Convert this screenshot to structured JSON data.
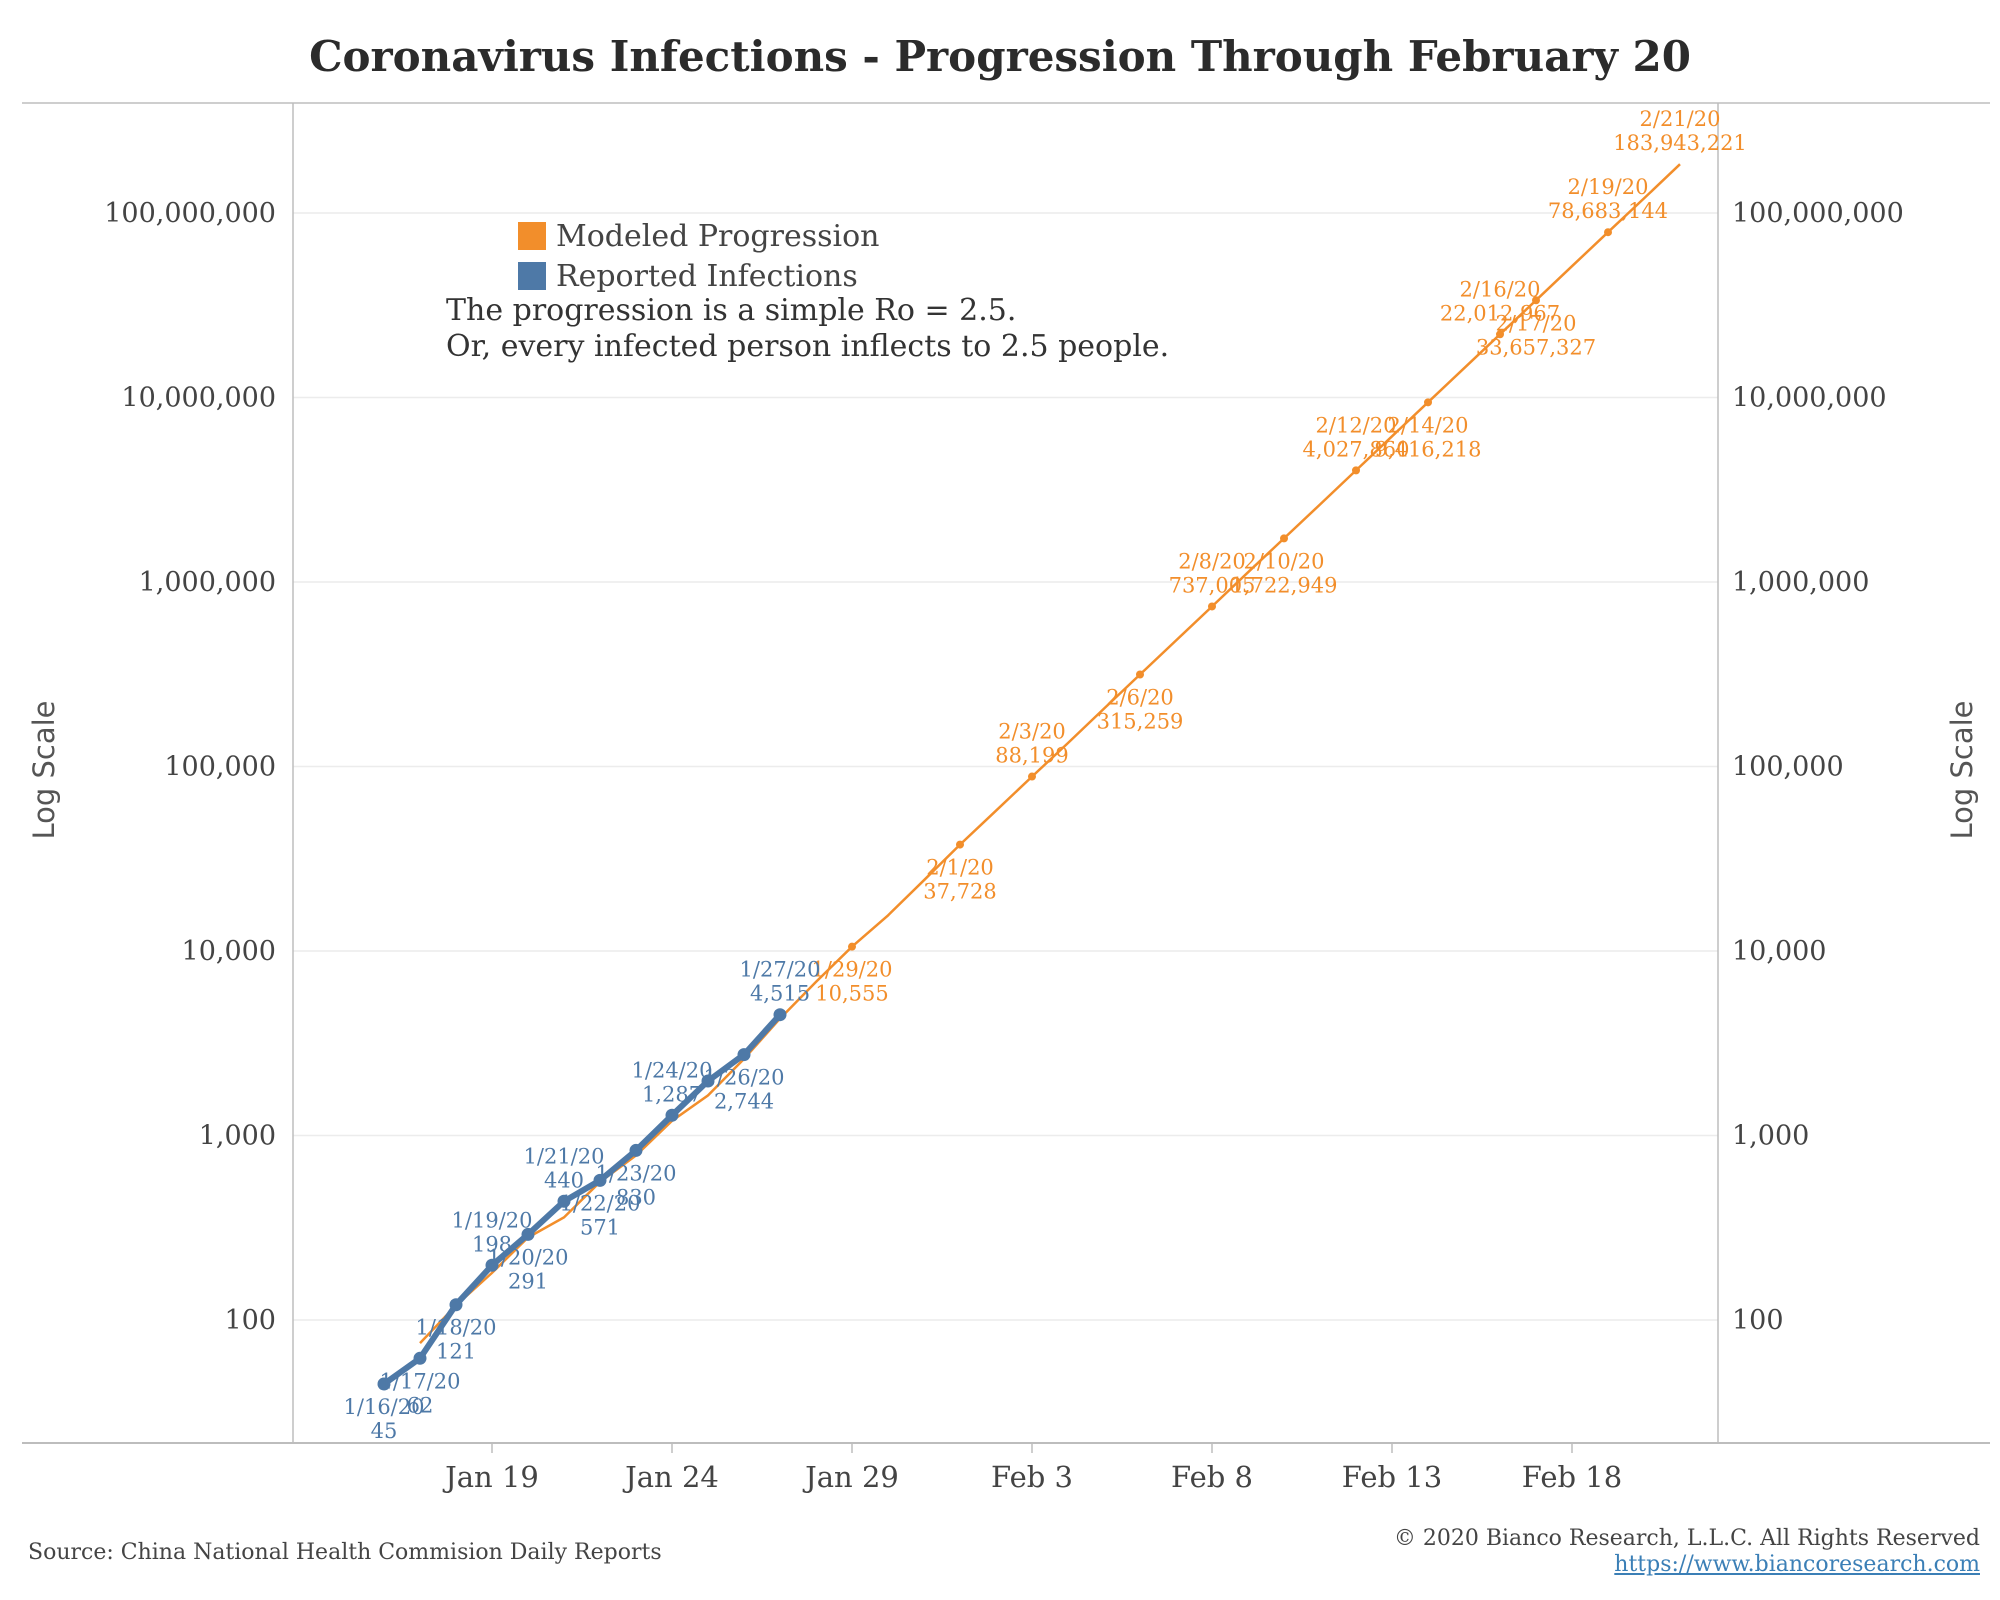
{
  "title": "Coronavirus Infections - Progression Through February 20",
  "source": "Source: China National Health Commision Daily Reports",
  "copyright": "© 2020 Bianco Research, L.L.C. All Rights Reserved",
  "url": "https://www.biancoresearch.com",
  "note_lines": [
    "The progression is a simple Ro = 2.5.",
    "Or, every infected person inflects to 2.5 people."
  ],
  "colors": {
    "modeled": "#f28e2b",
    "reported": "#4e79a7",
    "grid": "#ececec",
    "axis": "#bdbdbd"
  },
  "chart_data": {
    "type": "line",
    "title": "Coronavirus Infections - Progression Through February 20",
    "xlabel": "",
    "ylabel": "Log Scale",
    "yscale": "log",
    "ylim": [
      25,
      350000000
    ],
    "xlim": [
      "2020-01-15",
      "2020-02-23"
    ],
    "grid": true,
    "legend_position": "top-left",
    "y_ticks": [
      {
        "value": 100,
        "label": "100"
      },
      {
        "value": 1000,
        "label": "1,000"
      },
      {
        "value": 10000,
        "label": "10,000"
      },
      {
        "value": 100000,
        "label": "100,000"
      },
      {
        "value": 1000000,
        "label": "1,000,000"
      },
      {
        "value": 10000000,
        "label": "10,000,000"
      },
      {
        "value": 100000000,
        "label": "100,000,000"
      }
    ],
    "x_ticks": [
      {
        "date": "2020-01-19",
        "label": "Jan 19"
      },
      {
        "date": "2020-01-24",
        "label": "Jan 24"
      },
      {
        "date": "2020-01-29",
        "label": "Jan 29"
      },
      {
        "date": "2020-02-03",
        "label": "Feb 3"
      },
      {
        "date": "2020-02-08",
        "label": "Feb 8"
      },
      {
        "date": "2020-02-13",
        "label": "Feb 13"
      },
      {
        "date": "2020-02-18",
        "label": "Feb 18"
      }
    ],
    "series": [
      {
        "name": "Modeled Progression",
        "color": "#f28e2b",
        "line": [
          {
            "date": "2020-01-17",
            "y": 75
          },
          {
            "date": "2020-01-18",
            "y": 120
          },
          {
            "date": "2020-01-19",
            "y": 180
          },
          {
            "date": "2020-01-20",
            "y": 280
          },
          {
            "date": "2020-01-21",
            "y": 360
          },
          {
            "date": "2020-01-22",
            "y": 560
          },
          {
            "date": "2020-01-23",
            "y": 780
          },
          {
            "date": "2020-01-24",
            "y": 1200
          },
          {
            "date": "2020-01-25",
            "y": 1650
          },
          {
            "date": "2020-01-26",
            "y": 2600
          },
          {
            "date": "2020-01-27",
            "y": 4300
          },
          {
            "date": "2020-01-28",
            "y": 6800
          },
          {
            "date": "2020-01-29",
            "y": 10555
          },
          {
            "date": "2020-01-30",
            "y": 15600
          },
          {
            "date": "2020-01-31",
            "y": 24200
          },
          {
            "date": "2020-02-01",
            "y": 37728
          },
          {
            "date": "2020-02-02",
            "y": 57600
          },
          {
            "date": "2020-02-03",
            "y": 88199
          },
          {
            "date": "2020-02-04",
            "y": 134000
          },
          {
            "date": "2020-02-05",
            "y": 206000
          },
          {
            "date": "2020-02-06",
            "y": 315259
          },
          {
            "date": "2020-02-07",
            "y": 482000
          },
          {
            "date": "2020-02-08",
            "y": 737005
          },
          {
            "date": "2020-02-09",
            "y": 1128000
          },
          {
            "date": "2020-02-10",
            "y": 1722949
          },
          {
            "date": "2020-02-11",
            "y": 2630000
          },
          {
            "date": "2020-02-12",
            "y": 4027860
          },
          {
            "date": "2020-02-13",
            "y": 6160000
          },
          {
            "date": "2020-02-14",
            "y": 9416218
          },
          {
            "date": "2020-02-15",
            "y": 14400000
          },
          {
            "date": "2020-02-16",
            "y": 22012967
          },
          {
            "date": "2020-02-17",
            "y": 33657327
          },
          {
            "date": "2020-02-18",
            "y": 51500000
          },
          {
            "date": "2020-02-19",
            "y": 78683144
          },
          {
            "date": "2020-02-20",
            "y": 120000000
          },
          {
            "date": "2020-02-21",
            "y": 183943221
          }
        ],
        "labeled_points": [
          {
            "date": "2020-01-29",
            "y": 10555,
            "label_date": "1/29/20",
            "label_value": "10,555",
            "pos": "below"
          },
          {
            "date": "2020-02-01",
            "y": 37728,
            "label_date": "2/1/20",
            "label_value": "37,728",
            "pos": "below"
          },
          {
            "date": "2020-02-03",
            "y": 88199,
            "label_date": "2/3/20",
            "label_value": "88,199",
            "pos": "above"
          },
          {
            "date": "2020-02-06",
            "y": 315259,
            "label_date": "2/6/20",
            "label_value": "315,259",
            "pos": "below"
          },
          {
            "date": "2020-02-08",
            "y": 737005,
            "label_date": "2/8/20",
            "label_value": "737,005",
            "pos": "above"
          },
          {
            "date": "2020-02-10",
            "y": 1722949,
            "label_date": "2/10/20",
            "label_value": "1,722,949",
            "pos": "below"
          },
          {
            "date": "2020-02-12",
            "y": 4027860,
            "label_date": "2/12/20",
            "label_value": "4,027,860",
            "pos": "above"
          },
          {
            "date": "2020-02-14",
            "y": 9416218,
            "label_date": "2/14/20",
            "label_value": "9,416,218",
            "pos": "below"
          },
          {
            "date": "2020-02-16",
            "y": 22012967,
            "label_date": "2/16/20",
            "label_value": "22,012,967",
            "pos": "above"
          },
          {
            "date": "2020-02-17",
            "y": 33657327,
            "label_date": "2/17/20",
            "label_value": "33,657,327",
            "pos": "below"
          },
          {
            "date": "2020-02-19",
            "y": 78683144,
            "label_date": "2/19/20",
            "label_value": "78,683,144",
            "pos": "above"
          },
          {
            "date": "2020-02-21",
            "y": 183943221,
            "label_date": "2/21/20",
            "label_value": "183,943,221",
            "pos": "above"
          }
        ]
      },
      {
        "name": "Reported Infections",
        "color": "#4e79a7",
        "points": [
          {
            "date": "2020-01-16",
            "y": 45,
            "label_date": "1/16/20",
            "label_value": "45",
            "pos": "below"
          },
          {
            "date": "2020-01-17",
            "y": 62,
            "label_date": "1/17/20",
            "label_value": "62",
            "pos": "below"
          },
          {
            "date": "2020-01-18",
            "y": 121,
            "label_date": "1/18/20",
            "label_value": "121",
            "pos": "below"
          },
          {
            "date": "2020-01-19",
            "y": 198,
            "label_date": "1/19/20",
            "label_value": "198",
            "pos": "above"
          },
          {
            "date": "2020-01-20",
            "y": 291,
            "label_date": "1/20/20",
            "label_value": "291",
            "pos": "below"
          },
          {
            "date": "2020-01-21",
            "y": 440,
            "label_date": "1/21/20",
            "label_value": "440",
            "pos": "above"
          },
          {
            "date": "2020-01-22",
            "y": 571,
            "label_date": "1/22/20",
            "label_value": "571",
            "pos": "below"
          },
          {
            "date": "2020-01-23",
            "y": 830,
            "label_date": "1/23/20",
            "label_value": "830",
            "pos": "below"
          },
          {
            "date": "2020-01-24",
            "y": 1287,
            "label_date": "1/24/20",
            "label_value": "1,287",
            "pos": "above"
          },
          {
            "date": "2020-01-25",
            "y": 1975,
            "label_date": "",
            "label_value": "",
            "pos": "none"
          },
          {
            "date": "2020-01-26",
            "y": 2744,
            "label_date": "1/26/20",
            "label_value": "2,744",
            "pos": "below"
          },
          {
            "date": "2020-01-27",
            "y": 4515,
            "label_date": "1/27/20",
            "label_value": "4,515",
            "pos": "above"
          }
        ]
      }
    ]
  }
}
